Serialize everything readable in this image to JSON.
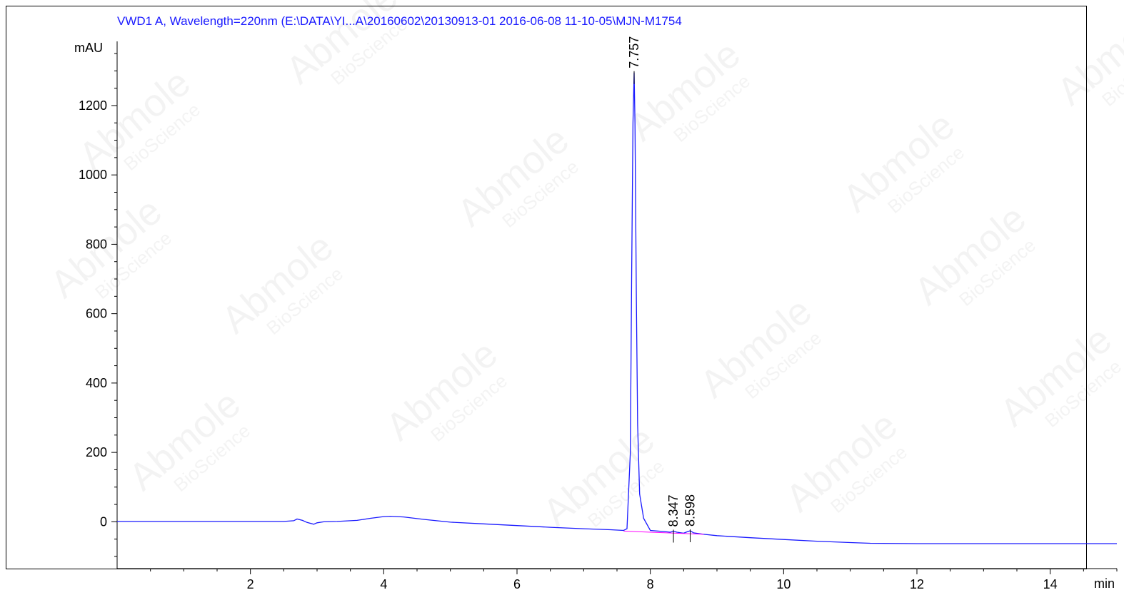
{
  "title": "VWD1 A,  Wavelength=220nm (E:\\DATA\\YI...A\\20160602\\20130913-01 2016-06-08 11-10-05\\MJN-M1754",
  "watermark": {
    "brand": "Abmole",
    "sub": "BioScience"
  },
  "colors": {
    "trace": "#1a1aff",
    "baseline": "#ff00ff",
    "title": "#1a1aff"
  },
  "chart_data": {
    "type": "line",
    "title": "VWD1 A,  Wavelength=220nm (E:\\DATA\\YI...A\\20160602\\20130913-01 2016-06-08 11-10-05\\MJN-M1754",
    "xlabel": "min",
    "ylabel": "mAU",
    "xlim": [
      0,
      15
    ],
    "ylim": [
      -135,
      1385
    ],
    "x_ticks": [
      2,
      4,
      6,
      8,
      10,
      12,
      14
    ],
    "y_ticks": [
      0,
      200,
      400,
      600,
      800,
      1000,
      1200
    ],
    "grid": false,
    "series": [
      {
        "x": [
          0,
          1.0,
          2.0,
          2.5,
          2.65,
          2.7,
          2.78,
          2.85,
          2.95,
          3.0,
          3.1,
          3.3,
          3.6,
          3.8,
          4.0,
          4.1,
          4.3,
          4.6,
          5.0,
          5.5,
          6.0,
          6.5,
          7.0,
          7.4,
          7.6,
          7.65,
          7.7,
          7.72,
          7.74,
          7.757,
          7.77,
          7.79,
          7.81,
          7.84,
          7.9,
          8.0,
          8.2,
          8.3,
          8.347,
          8.4,
          8.5,
          8.55,
          8.598,
          8.65,
          8.8,
          9.0,
          9.5,
          10.0,
          10.5,
          11.0,
          11.3,
          12.0,
          13.0,
          14.0,
          15.0
        ],
        "y": [
          1,
          1,
          1,
          1,
          3,
          8,
          4,
          -2,
          -7,
          -3,
          0,
          1,
          4,
          10,
          15,
          16,
          14,
          7,
          -1,
          -6,
          -11,
          -16,
          -20,
          -23,
          -25,
          -20,
          200,
          700,
          1150,
          1295,
          1150,
          650,
          280,
          80,
          10,
          -25,
          -28,
          -30,
          -27,
          -30,
          -33,
          -29,
          -26,
          -32,
          -36,
          -40,
          -46,
          -51,
          -56,
          -60,
          -62,
          -63,
          -63,
          -63,
          -63
        ]
      }
    ],
    "peaks": [
      {
        "rt": 7.757,
        "label": "7.757",
        "height": 1295
      },
      {
        "rt": 8.347,
        "label": "8.347",
        "height": -27
      },
      {
        "rt": 8.598,
        "label": "8.598",
        "height": -26
      }
    ],
    "baseline": {
      "x": [
        7.6,
        8.8
      ],
      "y": [
        -27,
        -36
      ]
    }
  }
}
